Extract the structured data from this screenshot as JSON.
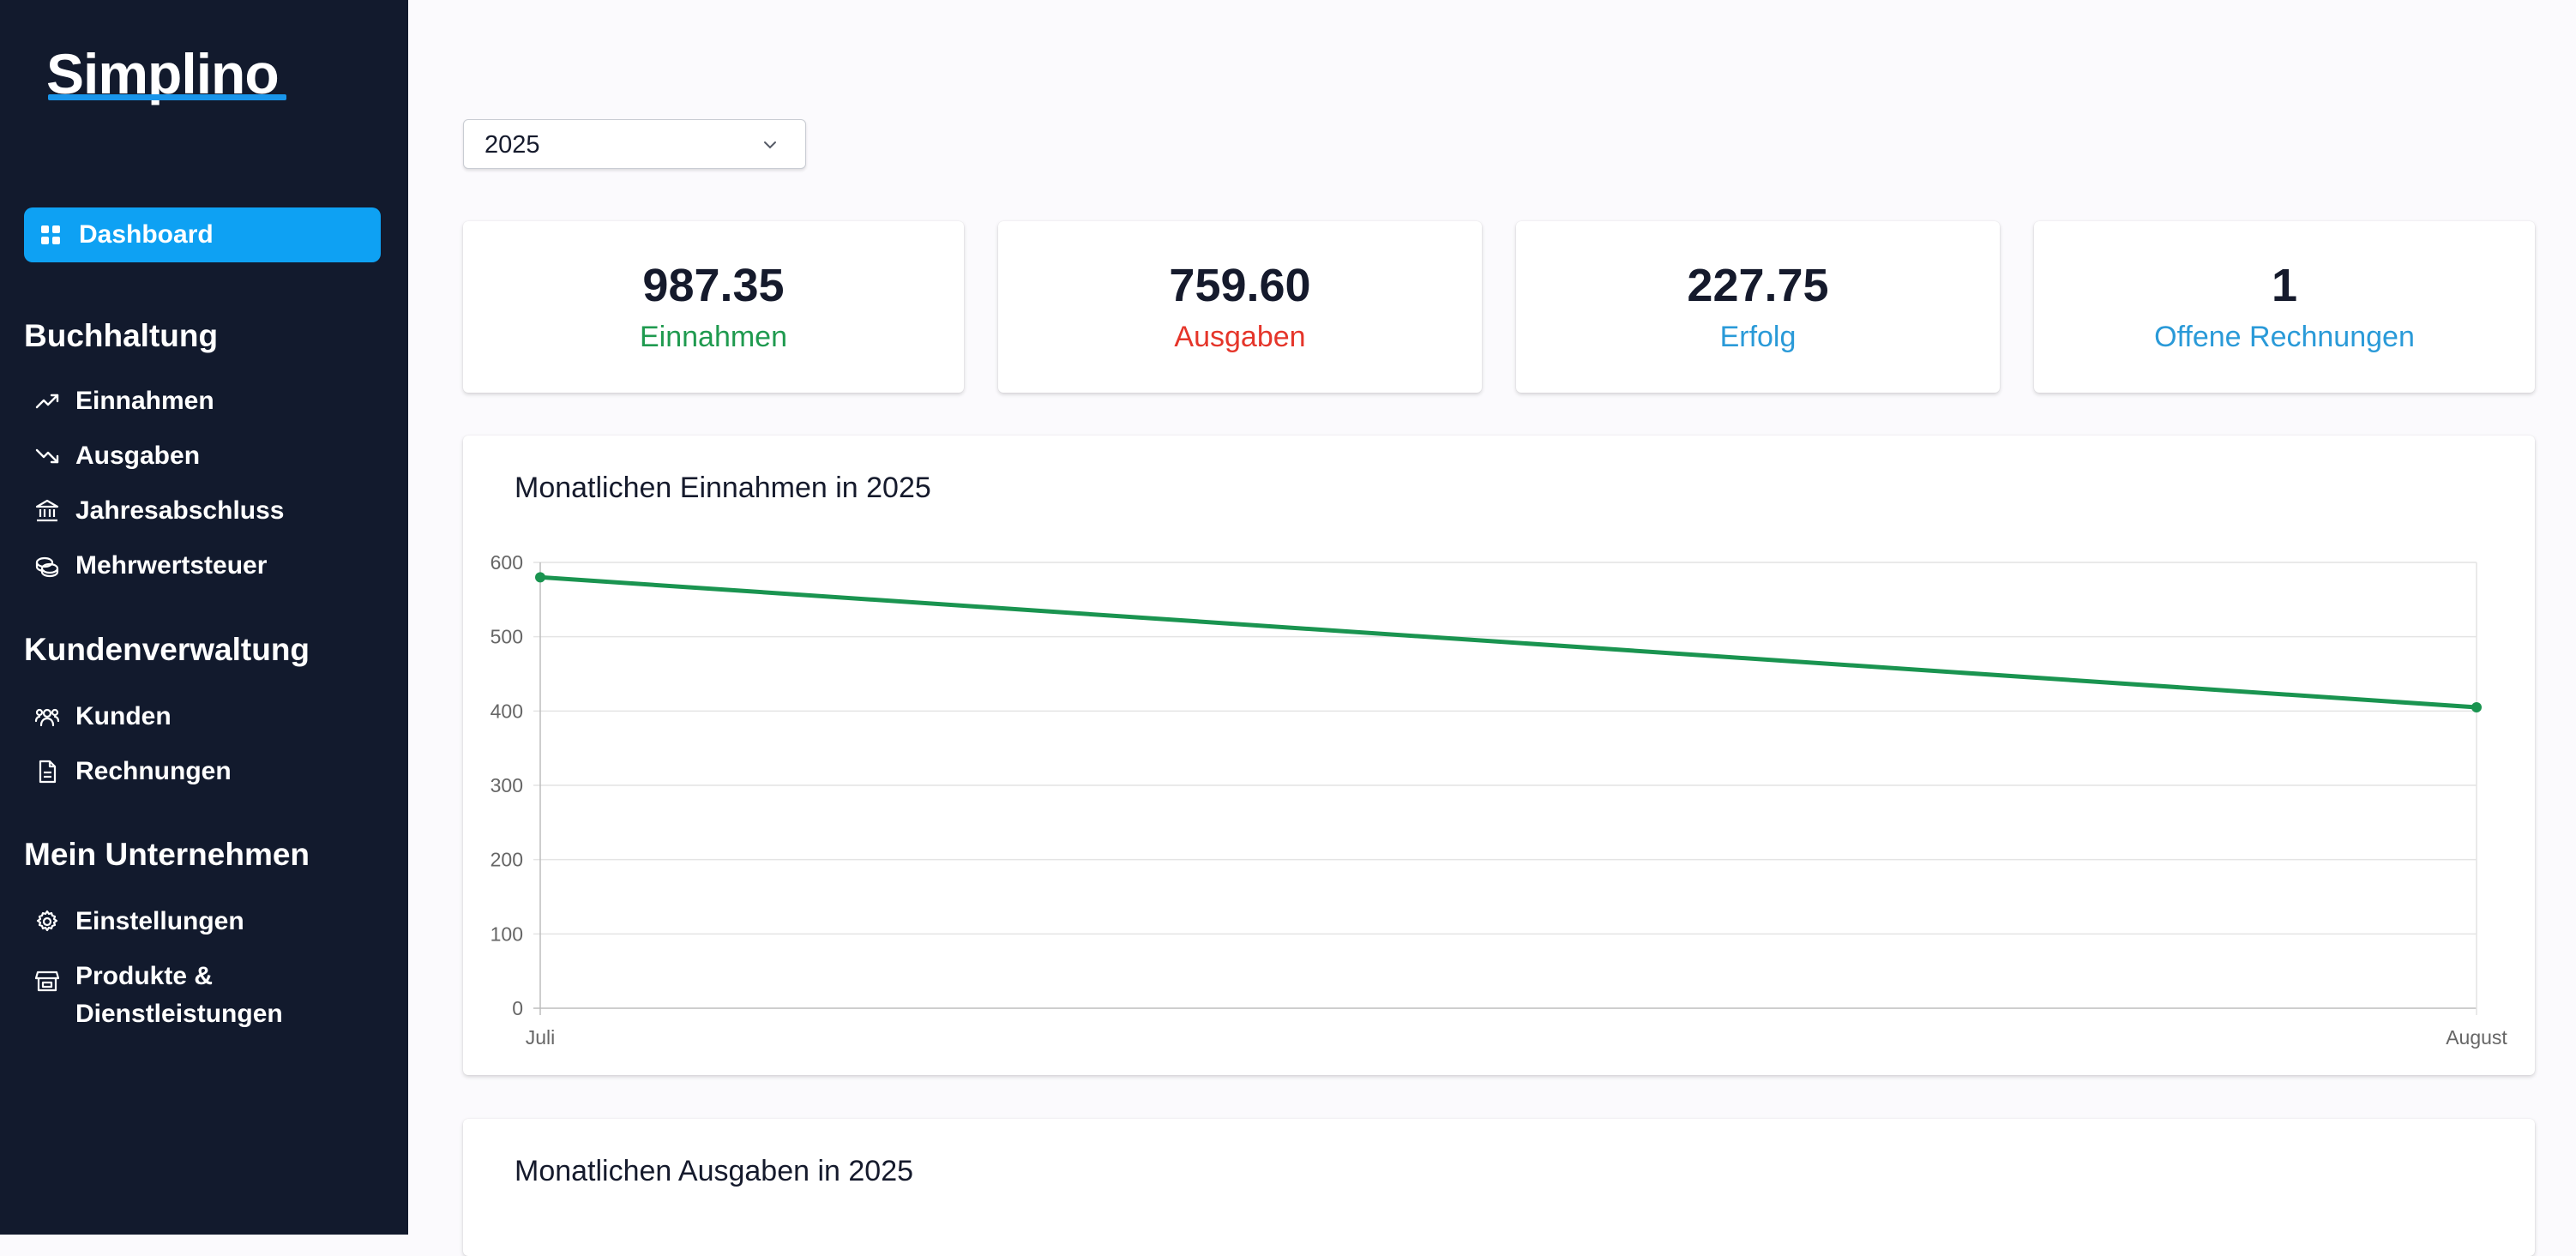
{
  "app": {
    "logo": "Simplino"
  },
  "sidebar": {
    "active_item": {
      "label": "Dashboard",
      "icon": "dashboard-grid-icon"
    },
    "sections": [
      {
        "title": "Buchhaltung",
        "items": [
          {
            "label": "Einnahmen",
            "icon": "trending-up-icon"
          },
          {
            "label": "Ausgaben",
            "icon": "trending-down-icon"
          },
          {
            "label": "Jahresabschluss",
            "icon": "bank-icon"
          },
          {
            "label": "Mehrwertsteuer",
            "icon": "coins-icon"
          }
        ]
      },
      {
        "title": "Kundenverwaltung",
        "items": [
          {
            "label": "Kunden",
            "icon": "users-icon"
          },
          {
            "label": "Rechnungen",
            "icon": "document-icon"
          }
        ]
      },
      {
        "title": "Mein Unternehmen",
        "items": [
          {
            "label": "Einstellungen",
            "icon": "gear-icon"
          },
          {
            "label_line1": "Produkte &",
            "label_line2": "Dienstleistungen",
            "icon": "store-icon"
          }
        ]
      }
    ]
  },
  "year_select": {
    "value": "2025",
    "icon": "chevron-down-icon"
  },
  "stats": [
    {
      "value": "987.35",
      "label": "Einnahmen",
      "color": "#1f9a4f"
    },
    {
      "value": "759.60",
      "label": "Ausgaben",
      "color": "#e5352a"
    },
    {
      "value": "227.75",
      "label": "Erfolg",
      "color": "#2a9ad8"
    },
    {
      "value": "1",
      "label": "Offene Rechnungen",
      "color": "#2a9ad8"
    }
  ],
  "income_panel": {
    "title": "Monatlichen Einnahmen in 2025"
  },
  "expenses_panel": {
    "title": "Monatlichen Ausgaben in 2025"
  },
  "chart_data": {
    "type": "line",
    "title": "Monatlichen Einnahmen in 2025",
    "categories": [
      "Juli",
      "August"
    ],
    "series": [
      {
        "values": [
          580,
          405
        ],
        "color": "#1a9450"
      }
    ],
    "ylim": [
      0,
      600
    ],
    "yticks": [
      "0",
      "100",
      "200",
      "300",
      "400",
      "500",
      "600"
    ],
    "grid": true,
    "legend": "none",
    "xlabel": "",
    "ylabel": ""
  }
}
